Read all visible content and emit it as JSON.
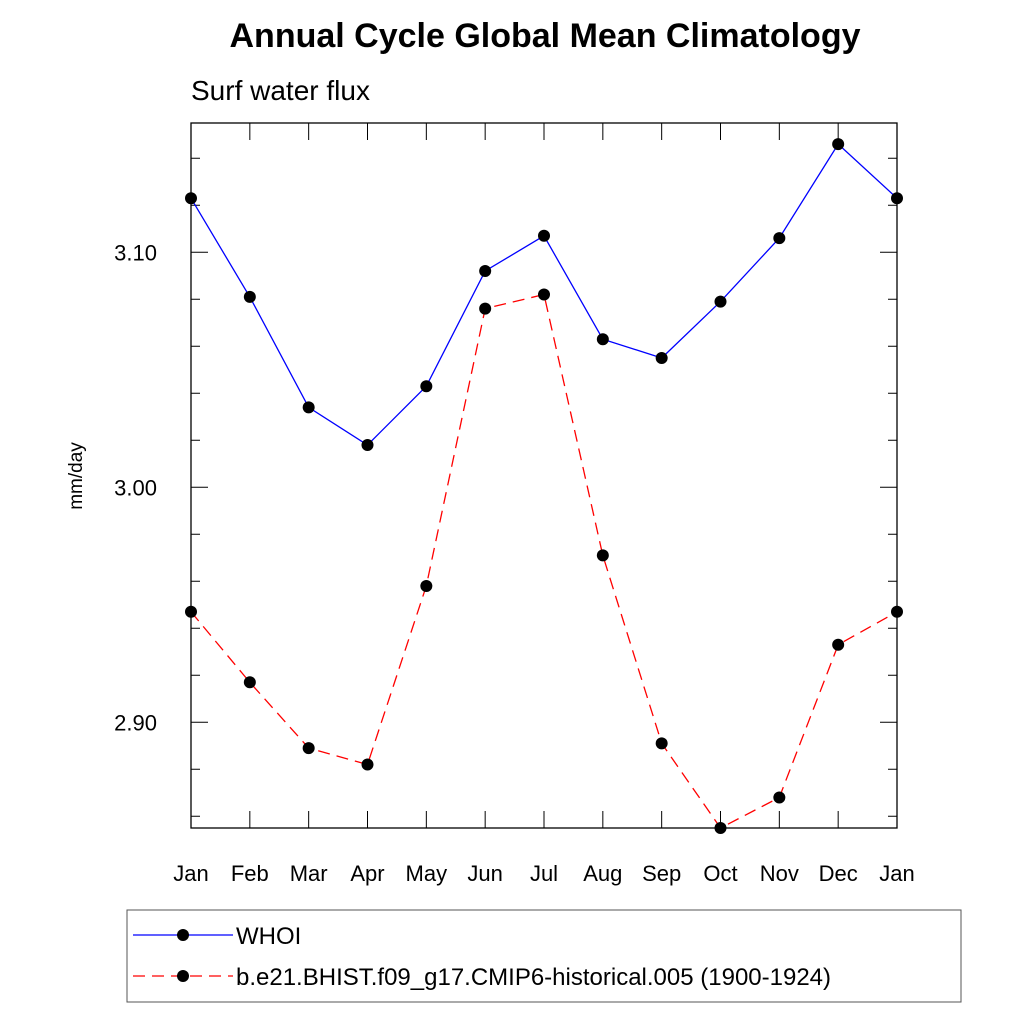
{
  "chart_data": {
    "type": "line",
    "title": "Annual Cycle Global Mean Climatology",
    "subtitle": "Surf water flux",
    "xlabel": "",
    "ylabel": "mm/day",
    "categories": [
      "Jan",
      "Feb",
      "Mar",
      "Apr",
      "May",
      "Jun",
      "Jul",
      "Aug",
      "Sep",
      "Oct",
      "Nov",
      "Dec",
      "Jan"
    ],
    "ylim": [
      2.855,
      3.155
    ],
    "yticks": [
      2.9,
      3.0,
      3.1
    ],
    "ytick_labels": [
      "2.90",
      "3.00",
      "3.10"
    ],
    "grid": false,
    "legend_position": "bottom",
    "series": [
      {
        "name": "WHOI",
        "color": "#0000ff",
        "dash": "solid",
        "marker": "filled-circle",
        "values": [
          3.123,
          3.081,
          3.034,
          3.018,
          3.043,
          3.092,
          3.107,
          3.063,
          3.055,
          3.079,
          3.106,
          3.146,
          3.123
        ]
      },
      {
        "name": "b.e21.BHIST.f09_g17.CMIP6-historical.005 (1900-1924)",
        "color": "#ff0000",
        "dash": "dashed",
        "marker": "filled-circle",
        "values": [
          2.947,
          2.917,
          2.889,
          2.882,
          2.958,
          3.076,
          3.082,
          2.971,
          2.891,
          2.855,
          2.868,
          2.933,
          2.947
        ]
      }
    ]
  }
}
